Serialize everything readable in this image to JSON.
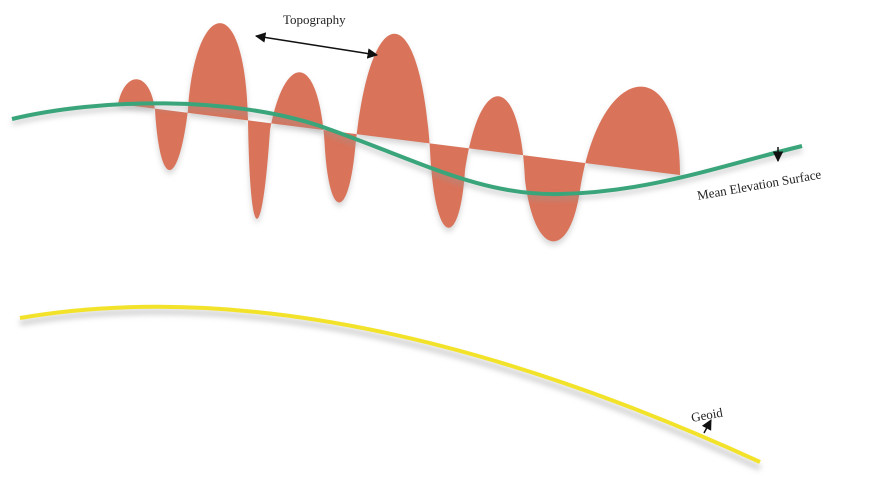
{
  "labels": {
    "topography": "Topography",
    "mean_elevation_surface": "Mean Elevation Surface",
    "geoid": "Geoid"
  }
}
